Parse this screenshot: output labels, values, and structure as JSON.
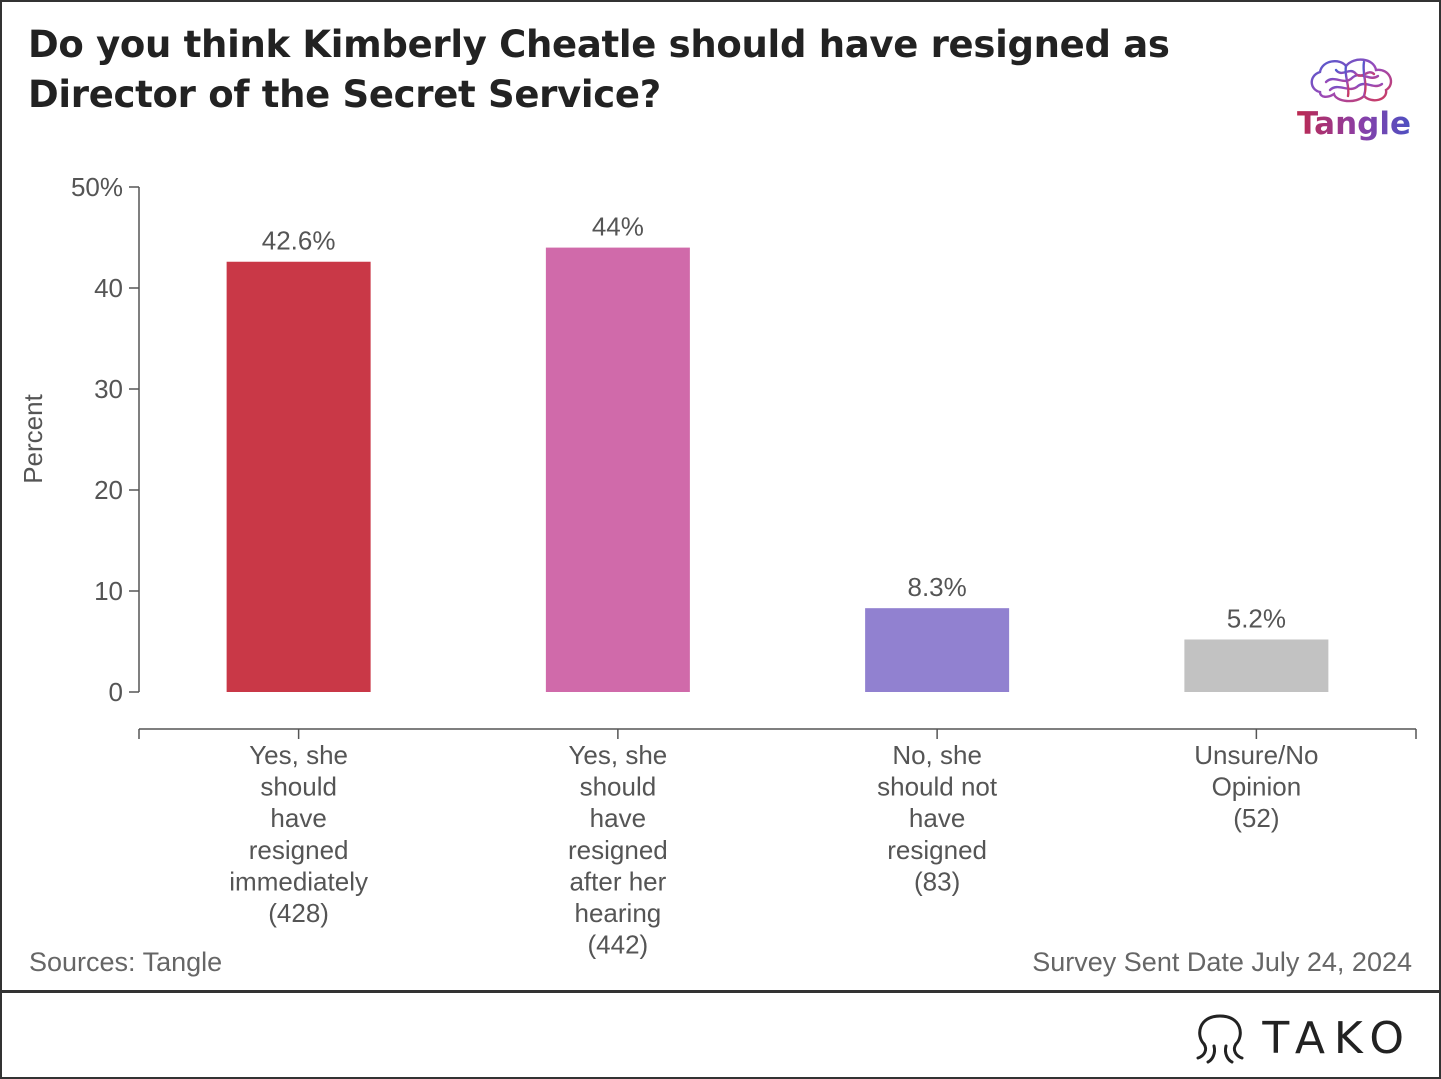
{
  "title": "Do you think Kimberly Cheatle should have resigned as Director of the Secret Service?",
  "brand_logo": {
    "name": "Tangle",
    "icon": "brain-icon"
  },
  "footer": {
    "sources": "Sources: Tangle",
    "note": "Survey Sent Date July 24, 2024",
    "wordmark": "TAKO",
    "wordmark_icon": "octopus-icon"
  },
  "chart_data": {
    "type": "bar",
    "title": "Do you think Kimberly Cheatle should have resigned as Director of the Secret Service?",
    "xlabel": "",
    "ylabel": "Percent",
    "ylim": [
      0,
      50
    ],
    "yticks": [
      {
        "value": 0,
        "label": "0"
      },
      {
        "value": 10,
        "label": "10"
      },
      {
        "value": 20,
        "label": "20"
      },
      {
        "value": 30,
        "label": "30"
      },
      {
        "value": 40,
        "label": "40"
      },
      {
        "value": 50,
        "label": "50%"
      }
    ],
    "grid": false,
    "legend": "none",
    "categories": [
      "Yes, she should have resigned immediately (428)",
      "Yes, she should have resigned after her hearing (442)",
      "No, she should not have resigned (83)",
      "Unsure/No Opinion (52)"
    ],
    "category_lines": [
      [
        "Yes, she",
        "should",
        "have",
        "resigned",
        "immediately",
        "(428)"
      ],
      [
        "Yes, she",
        "should",
        "have",
        "resigned",
        "after her",
        "hearing",
        "(442)"
      ],
      [
        "No, she",
        "should not",
        "have",
        "resigned",
        "(83)"
      ],
      [
        "Unsure/No",
        "Opinion",
        "(52)"
      ]
    ],
    "values": [
      42.6,
      44,
      8.3,
      5.2
    ],
    "data_labels": [
      "42.6%",
      "44%",
      "8.3%",
      "5.2%"
    ],
    "colors": [
      "#c93847",
      "#d06aaa",
      "#9181d0",
      "#c2c2c2"
    ]
  }
}
